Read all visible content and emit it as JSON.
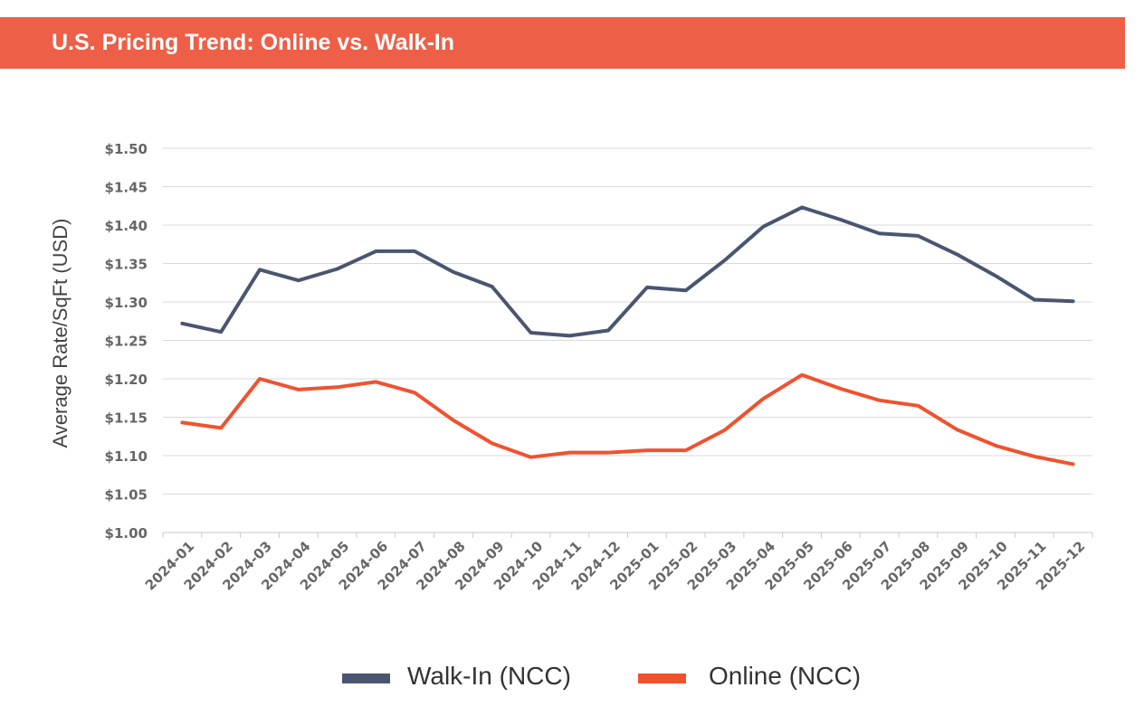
{
  "colors": {
    "accent": "#ee5f47",
    "walk_in": "#4a5570",
    "online": "#f0522f",
    "grid": "#d9d9d9",
    "tick": "#666666"
  },
  "chart_data": {
    "type": "line",
    "title": "U.S. Pricing Trend: Online vs. Walk-In",
    "xlabel": "",
    "ylabel": "Average Rate/SqFt (USD)",
    "ylim": [
      1.0,
      1.5
    ],
    "yticks": [
      "$1.00",
      "$1.05",
      "$1.10",
      "$1.15",
      "$1.20",
      "$1.25",
      "$1.30",
      "$1.35",
      "$1.40",
      "$1.45",
      "$1.50"
    ],
    "grid": true,
    "legend_position": "bottom-center",
    "categories": [
      "2024-01",
      "2024-02",
      "2024-03",
      "2024-04",
      "2024-05",
      "2024-06",
      "2024-07",
      "2024-08",
      "2024-09",
      "2024-10",
      "2024-11",
      "2024-12",
      "2025-01",
      "2025-02",
      "2025-03",
      "2025-04",
      "2025-05",
      "2025-06",
      "2025-07",
      "2025-08",
      "2025-09",
      "2025-10",
      "2025-11",
      "2025-12"
    ],
    "series": [
      {
        "name": "Walk-In (NCC)",
        "color": "#4a5570",
        "values": [
          1.272,
          1.261,
          1.342,
          1.328,
          1.343,
          1.366,
          1.366,
          1.339,
          1.32,
          1.26,
          1.256,
          1.263,
          1.319,
          1.315,
          1.354,
          1.398,
          1.423,
          1.407,
          1.389,
          1.386,
          1.362,
          1.334,
          1.303,
          1.301
        ]
      },
      {
        "name": "Online (NCC)",
        "color": "#f0522f",
        "values": [
          1.143,
          1.136,
          1.2,
          1.186,
          1.189,
          1.196,
          1.182,
          1.146,
          1.116,
          1.098,
          1.104,
          1.104,
          1.107,
          1.107,
          1.133,
          1.174,
          1.205,
          1.187,
          1.172,
          1.165,
          1.134,
          1.113,
          1.099,
          1.089
        ]
      }
    ]
  }
}
